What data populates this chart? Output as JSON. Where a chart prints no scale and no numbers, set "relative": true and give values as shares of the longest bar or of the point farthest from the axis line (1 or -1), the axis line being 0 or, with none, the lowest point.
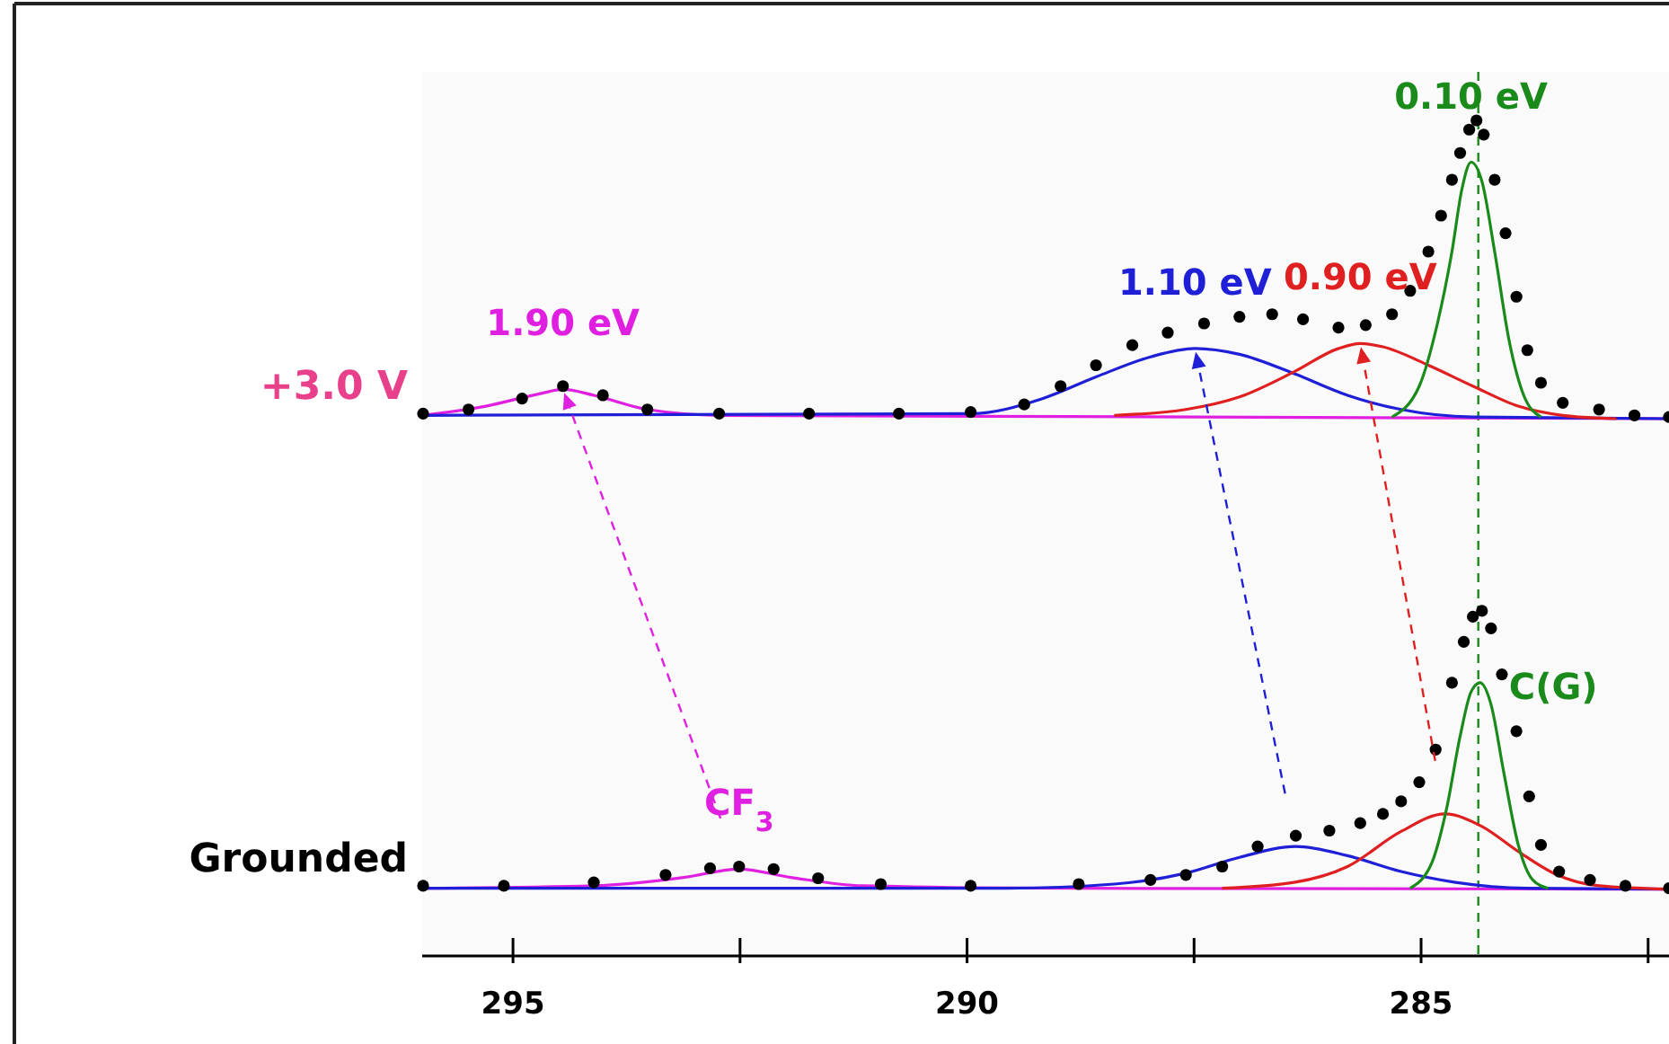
{
  "chart_data": {
    "type": "scatter",
    "relative": true,
    "xlim": [
      296,
      282.27
    ],
    "xticks": [
      295,
      {
        "value": 292.5,
        "label": null
      },
      290,
      {
        "value": 287.5,
        "label": null
      },
      285,
      {
        "value": 282.5,
        "label": null
      }
    ],
    "grid": false,
    "legend": false,
    "series": [
      {
        "name": "+3.0 V",
        "marker": "circle",
        "color": "#000000",
        "x": [
          295.99,
          295.49,
          294.9,
          294.45,
          294.01,
          293.52,
          292.73,
          291.74,
          290.75,
          289.96,
          289.37,
          288.97,
          288.58,
          288.18,
          287.79,
          287.39,
          287.0,
          286.64,
          286.3,
          285.91,
          285.61,
          285.32,
          285.12,
          284.92,
          284.78,
          284.66,
          284.57,
          284.47,
          284.39,
          284.31,
          284.19,
          284.07,
          283.95,
          283.83,
          283.68,
          283.44,
          283.04,
          282.65,
          282.27
        ],
        "values": [
          0.649,
          0.654,
          0.667,
          0.682,
          0.671,
          0.654,
          0.649,
          0.649,
          0.649,
          0.651,
          0.66,
          0.682,
          0.707,
          0.731,
          0.746,
          0.757,
          0.765,
          0.768,
          0.762,
          0.752,
          0.755,
          0.768,
          0.796,
          0.843,
          0.886,
          0.929,
          0.961,
          0.989,
          1.0,
          0.983,
          0.929,
          0.865,
          0.789,
          0.725,
          0.686,
          0.662,
          0.654,
          0.647,
          0.645
        ]
      },
      {
        "type": "line",
        "color": "#e020e0",
        "x": [
          295.99,
          295.3,
          294.7,
          294.45,
          294.11,
          293.52,
          292.73,
          282.27
        ],
        "values": [
          0.647,
          0.658,
          0.673,
          0.678,
          0.671,
          0.654,
          0.647,
          0.643
        ]
      },
      {
        "type": "line",
        "color": "#1f1fd8",
        "x": [
          295.99,
          289.96,
          289.17,
          288.58,
          287.98,
          287.49,
          287.0,
          286.4,
          285.81,
          285.22,
          284.43,
          282.27
        ],
        "values": [
          0.647,
          0.649,
          0.667,
          0.693,
          0.717,
          0.727,
          0.72,
          0.697,
          0.671,
          0.654,
          0.645,
          0.643
        ]
      },
      {
        "type": "line",
        "color": "#e02020",
        "x": [
          288.38,
          287.59,
          287.0,
          286.4,
          285.91,
          285.67,
          285.42,
          284.92,
          284.43,
          283.93,
          283.44,
          282.85
        ],
        "values": [
          0.647,
          0.654,
          0.669,
          0.699,
          0.727,
          0.733,
          0.729,
          0.707,
          0.682,
          0.658,
          0.647,
          0.643
        ]
      },
      {
        "type": "line",
        "color": "#1a8a1a",
        "x": [
          285.32,
          285.02,
          284.82,
          284.66,
          284.55,
          284.45,
          284.33,
          284.19,
          284.03,
          283.87,
          283.68
        ],
        "values": [
          0.645,
          0.682,
          0.757,
          0.843,
          0.918,
          0.95,
          0.927,
          0.843,
          0.736,
          0.671,
          0.645
        ]
      },
      {
        "name": "Grounded",
        "marker": "circle",
        "color": "#000000",
        "x": [
          295.99,
          295.1,
          294.11,
          293.32,
          292.83,
          292.51,
          292.13,
          291.64,
          290.95,
          289.96,
          288.77,
          287.98,
          287.59,
          287.19,
          286.8,
          286.38,
          286.01,
          285.67,
          285.42,
          285.22,
          285.02,
          284.84,
          284.66,
          284.53,
          284.43,
          284.33,
          284.23,
          284.11,
          283.95,
          283.81,
          283.68,
          283.48,
          283.14,
          282.75,
          282.27
        ],
        "values": [
          0.084,
          0.084,
          0.088,
          0.097,
          0.105,
          0.107,
          0.104,
          0.093,
          0.086,
          0.084,
          0.086,
          0.091,
          0.097,
          0.107,
          0.131,
          0.144,
          0.15,
          0.159,
          0.17,
          0.185,
          0.208,
          0.247,
          0.327,
          0.376,
          0.406,
          0.413,
          0.392,
          0.337,
          0.269,
          0.191,
          0.133,
          0.101,
          0.091,
          0.084,
          0.081
        ]
      },
      {
        "type": "line",
        "color": "#e020e0",
        "x": [
          295.99,
          294.11,
          293.12,
          292.51,
          291.94,
          291.15,
          288.77,
          282.27
        ],
        "values": [
          0.081,
          0.084,
          0.094,
          0.104,
          0.094,
          0.084,
          0.081,
          0.08
        ]
      },
      {
        "type": "line",
        "color": "#1f1fd8",
        "x": [
          295.99,
          289.57,
          288.38,
          287.59,
          287.0,
          286.38,
          285.81,
          285.22,
          284.62,
          283.83,
          282.27
        ],
        "values": [
          0.081,
          0.081,
          0.086,
          0.099,
          0.118,
          0.131,
          0.12,
          0.101,
          0.088,
          0.081,
          0.08
        ]
      },
      {
        "type": "line",
        "color": "#e02020",
        "x": [
          287.19,
          286.4,
          285.81,
          285.22,
          284.74,
          284.33,
          283.93,
          283.54,
          283.04,
          282.27
        ],
        "values": [
          0.081,
          0.088,
          0.107,
          0.149,
          0.17,
          0.155,
          0.125,
          0.099,
          0.084,
          0.08
        ]
      },
      {
        "type": "line",
        "color": "#1a8a1a",
        "x": [
          285.12,
          284.88,
          284.72,
          284.57,
          284.45,
          284.35,
          284.23,
          284.09,
          283.93,
          283.77,
          283.6
        ],
        "values": [
          0.081,
          0.112,
          0.176,
          0.263,
          0.316,
          0.327,
          0.301,
          0.22,
          0.133,
          0.091,
          0.081
        ]
      }
    ],
    "ref_lines": [
      {
        "axis": "x",
        "value": 284.37,
        "color": "#1a8a1a",
        "line_style": "dashed"
      }
    ],
    "annotations": [
      {
        "text": "1.90 eV",
        "x": 294.45,
        "y": 0.678
      },
      {
        "text": "1.10 eV",
        "x": 287.49,
        "y": 0.727
      },
      {
        "text": "0.90 eV",
        "x": 285.67,
        "y": 0.733
      },
      {
        "text": "0.10 eV",
        "x": 284.45,
        "y": 0.95
      },
      {
        "text": "CF$_{3}$",
        "x": 292.51,
        "y": 0.104
      },
      {
        "text": "C(G)",
        "x": 284.23,
        "y": 0.301
      }
    ]
  }
}
